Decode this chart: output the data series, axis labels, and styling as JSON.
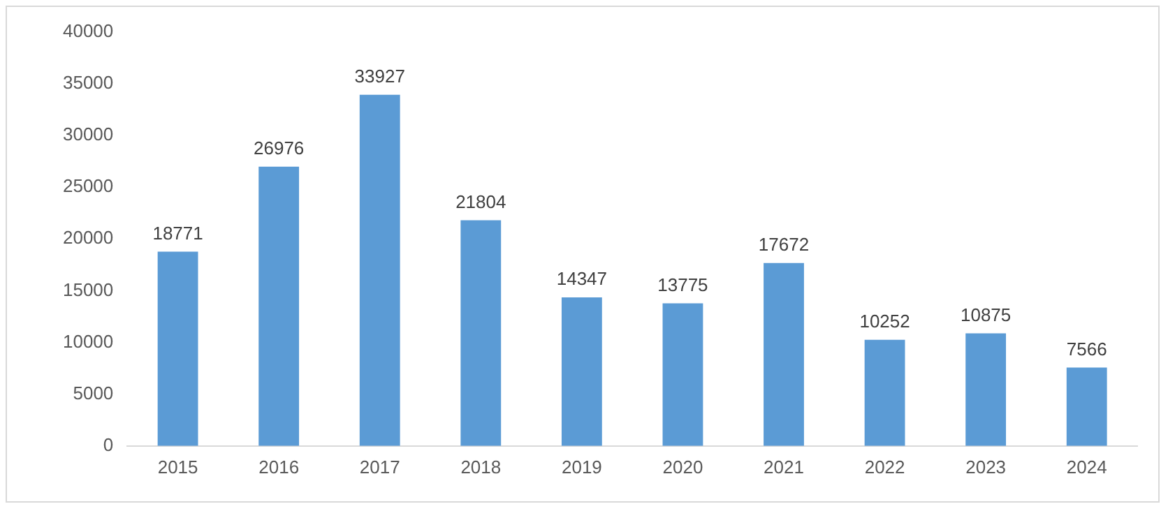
{
  "chart_data": {
    "type": "bar",
    "categories": [
      "2015",
      "2016",
      "2017",
      "2018",
      "2019",
      "2020",
      "2021",
      "2022",
      "2023",
      "2024"
    ],
    "values": [
      18771,
      26976,
      33927,
      21804,
      14347,
      13775,
      17672,
      10252,
      10875,
      7566
    ],
    "color": "#5b9bd5",
    "ylim": [
      0,
      40000
    ],
    "yticks": [
      0,
      5000,
      10000,
      15000,
      20000,
      25000,
      30000,
      35000,
      40000
    ],
    "grid": false,
    "legend": false,
    "data_labels": true
  }
}
